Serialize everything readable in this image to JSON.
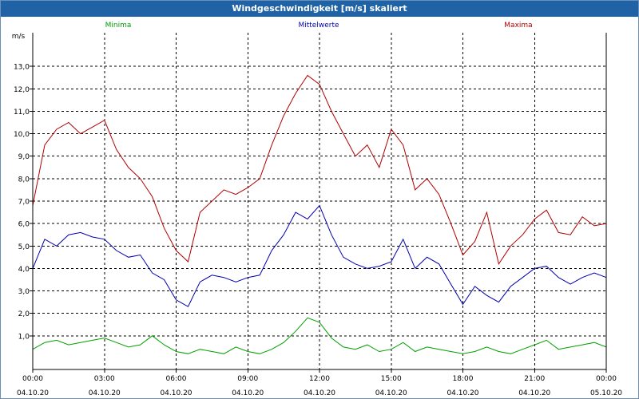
{
  "window": {
    "title": "Windgeschwindigkeit [m/s] skaliert"
  },
  "chart_data": {
    "type": "line",
    "ylabel": "m/s",
    "ylim": [
      -0.5,
      14.5
    ],
    "y_ticks": [
      "1,0",
      "2,0",
      "3,0",
      "4,0",
      "5,0",
      "6,0",
      "7,0",
      "8,0",
      "9,0",
      "10,0",
      "11,0",
      "12,0",
      "13,0"
    ],
    "xlim": [
      0,
      24
    ],
    "x_ticks": [
      {
        "time": "00:00",
        "date": "04.10.20"
      },
      {
        "time": "03:00",
        "date": "04.10.20"
      },
      {
        "time": "06:00",
        "date": "04.10.20"
      },
      {
        "time": "09:00",
        "date": "04.10.20"
      },
      {
        "time": "12:00",
        "date": "04.10.20"
      },
      {
        "time": "15:00",
        "date": "04.10.20"
      },
      {
        "time": "18:00",
        "date": "04.10.20"
      },
      {
        "time": "21:00",
        "date": "04.10.20"
      },
      {
        "time": "00:00",
        "date": "05.10.20"
      }
    ],
    "grid": true,
    "legend_position": "top",
    "series": [
      {
        "name": "Minima",
        "color": "#00a000",
        "x": [
          0,
          0.5,
          1,
          1.5,
          2,
          2.5,
          3,
          3.5,
          4,
          4.5,
          5,
          5.5,
          6,
          6.5,
          7,
          7.5,
          8,
          8.5,
          9,
          9.5,
          10,
          10.5,
          11,
          11.5,
          12,
          12.5,
          13,
          13.5,
          14,
          14.5,
          15,
          15.5,
          16,
          16.5,
          17,
          17.5,
          18,
          18.5,
          19,
          19.5,
          20,
          20.5,
          21,
          21.5,
          22,
          22.5,
          23,
          23.5,
          24
        ],
        "values": [
          0.4,
          0.7,
          0.8,
          0.6,
          0.7,
          0.8,
          0.9,
          0.7,
          0.5,
          0.6,
          1.0,
          0.6,
          0.3,
          0.2,
          0.4,
          0.3,
          0.2,
          0.5,
          0.3,
          0.2,
          0.4,
          0.7,
          1.2,
          1.8,
          1.6,
          0.9,
          0.5,
          0.4,
          0.6,
          0.3,
          0.4,
          0.7,
          0.3,
          0.5,
          0.4,
          0.3,
          0.2,
          0.3,
          0.5,
          0.3,
          0.2,
          0.4,
          0.6,
          0.8,
          0.4,
          0.5,
          0.6,
          0.7,
          0.5
        ]
      },
      {
        "name": "Mittelwerte",
        "color": "#0000b0",
        "x": [
          0,
          0.5,
          1,
          1.5,
          2,
          2.5,
          3,
          3.5,
          4,
          4.5,
          5,
          5.5,
          6,
          6.5,
          7,
          7.5,
          8,
          8.5,
          9,
          9.5,
          10,
          10.5,
          11,
          11.5,
          12,
          12.5,
          13,
          13.5,
          14,
          14.5,
          15,
          15.5,
          16,
          16.5,
          17,
          17.5,
          18,
          18.5,
          19,
          19.5,
          20,
          20.5,
          21,
          21.5,
          22,
          22.5,
          23,
          23.5,
          24
        ],
        "values": [
          4.0,
          5.3,
          5.0,
          5.5,
          5.6,
          5.4,
          5.3,
          4.8,
          4.5,
          4.6,
          3.8,
          3.5,
          2.6,
          2.3,
          3.4,
          3.7,
          3.6,
          3.4,
          3.6,
          3.7,
          4.8,
          5.5,
          6.5,
          6.2,
          6.8,
          5.5,
          4.5,
          4.2,
          4.0,
          4.1,
          4.3,
          5.3,
          4.0,
          4.5,
          4.2,
          3.3,
          2.4,
          3.2,
          2.8,
          2.5,
          3.2,
          3.6,
          4.0,
          4.1,
          3.6,
          3.3,
          3.6,
          3.8,
          3.6
        ]
      },
      {
        "name": "Maxima",
        "color": "#b00000",
        "x": [
          0,
          0.5,
          1,
          1.5,
          2,
          2.5,
          3,
          3.5,
          4,
          4.5,
          5,
          5.5,
          6,
          6.5,
          7,
          7.5,
          8,
          8.5,
          9,
          9.5,
          10,
          10.5,
          11,
          11.5,
          12,
          12.5,
          13,
          13.5,
          14,
          14.5,
          15,
          15.5,
          16,
          16.5,
          17,
          17.5,
          18,
          18.5,
          19,
          19.5,
          20,
          20.5,
          21,
          21.5,
          22,
          22.5,
          23,
          23.5,
          24
        ],
        "values": [
          6.8,
          9.5,
          10.2,
          10.5,
          10.0,
          10.3,
          10.6,
          9.3,
          8.5,
          8.0,
          7.2,
          5.8,
          4.8,
          4.3,
          6.5,
          7.0,
          7.5,
          7.3,
          7.6,
          8.0,
          9.5,
          10.8,
          11.8,
          12.6,
          12.2,
          11.0,
          10.0,
          9.0,
          9.5,
          8.5,
          10.2,
          9.5,
          7.5,
          8.0,
          7.3,
          6.0,
          4.6,
          5.2,
          6.5,
          4.2,
          5.0,
          5.5,
          6.2,
          6.6,
          5.6,
          5.5,
          6.3,
          5.9,
          6.0
        ]
      }
    ]
  }
}
